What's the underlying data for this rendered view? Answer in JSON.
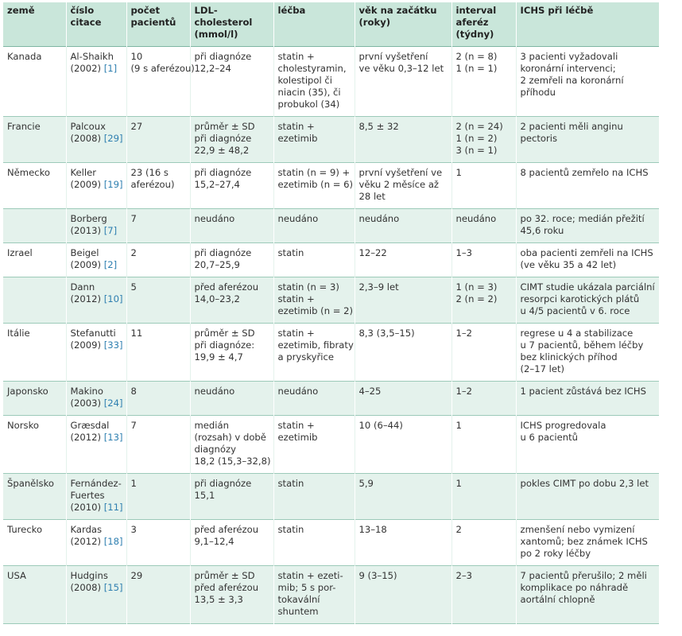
{
  "header": [
    "země",
    "číslo citace",
    "počet pacientů",
    "LDL-cholesterol (mmol/l)",
    "léčba",
    "věk na začátku (roky)",
    "interval aferéz (týdny)",
    "ICHS při léčbě"
  ],
  "rows": [
    {
      "country": "Kanada",
      "author": "Al-Shaikh",
      "year": "(2002)",
      "ref": "[1]",
      "count": [
        "10",
        "(9 s aferézou)"
      ],
      "ldl": [
        "při diagnóze",
        "12,2–24"
      ],
      "therapy": [
        "statin +",
        "cholestyramin,",
        "kolestipol či",
        "niacin (35), či",
        "probukol (34)"
      ],
      "age": [
        "první vyšetření",
        "ve věku 0,3–12 let"
      ],
      "interval": [
        "2 (n = 8)",
        "1 (n = 1)"
      ],
      "ichs": [
        "3 pacienti vyžadovali",
        "koronární intervenci;",
        "2 zemřeli na koronární",
        "příhodu"
      ]
    },
    {
      "country": "Francie",
      "author": "Palcoux",
      "year": "(2008)",
      "ref": "[29]",
      "count": [
        "27"
      ],
      "ldl": [
        "průměr ± SD",
        "při diagnóze",
        "22,9 ± 48,2"
      ],
      "therapy": [
        "statin +",
        "ezetimib"
      ],
      "age": [
        "8,5 ± 32"
      ],
      "interval": [
        "2 (n = 24)",
        "1 (n = 2)",
        "3 (n = 1)"
      ],
      "ichs": [
        "2 pacienti měli anginu",
        "pectoris"
      ]
    },
    {
      "country": "Německo",
      "author": "Keller",
      "year": "(2009)",
      "ref": "[19]",
      "count": [
        "23 (16 s",
        "aferézou)"
      ],
      "ldl": [
        "při diagnóze",
        "15,2–27,4"
      ],
      "therapy": [
        "statin (n = 9) +",
        "ezetimib (n = 6)"
      ],
      "age": [
        "první vyšetření ve",
        "věku 2 měsíce až",
        "28 let"
      ],
      "interval": [
        "1"
      ],
      "ichs": [
        "8 pacientů zemřelo na ICHS"
      ]
    },
    {
      "country": "",
      "author": "Borberg",
      "year": "(2013)",
      "ref": "[7]",
      "count": [
        "7"
      ],
      "ldl": [
        "neudáno"
      ],
      "therapy": [
        "neudáno"
      ],
      "age": [
        "neudáno"
      ],
      "interval": [
        "neudáno"
      ],
      "ichs": [
        "po 32. roce; medián přežití",
        "45,6 roku"
      ]
    },
    {
      "country": "Izrael",
      "author": "Beigel",
      "year": "(2009)",
      "ref": "[2]",
      "count": [
        "2"
      ],
      "ldl": [
        "při diagnóze",
        "20,7–25,9"
      ],
      "therapy": [
        "statin"
      ],
      "age": [
        "12–22"
      ],
      "interval": [
        "1–3"
      ],
      "ichs": [
        "oba pacienti zemřeli na ICHS",
        "(ve věku 35 a 42 let)"
      ]
    },
    {
      "country": "",
      "author": "Dann",
      "year": "(2012)",
      "ref": "[10]",
      "count": [
        "5"
      ],
      "ldl": [
        "před aferézou",
        "14,0–23,2"
      ],
      "therapy": [
        "statin (n = 3)",
        "statin +",
        "ezetimib (n = 2)"
      ],
      "age": [
        "2,3–9 let"
      ],
      "interval": [
        "1 (n = 3)",
        "2 (n = 2)"
      ],
      "ichs": [
        "CIMT studie ukázala parciální",
        "resorpci karotických plátů",
        "u 4/5 pacientů v 6. roce"
      ]
    },
    {
      "country": "Itálie",
      "author": "Stefanutti",
      "year": "(2009)",
      "ref": "[33]",
      "count": [
        "11"
      ],
      "ldl": [
        "průměr ± SD",
        "při diagnóze:",
        "19,9 ± 4,7"
      ],
      "therapy": [
        "statin +",
        "ezetimib, fibraty",
        "a pryskyřice"
      ],
      "age": [
        "8,3 (3,5–15)"
      ],
      "interval": [
        "1–2"
      ],
      "ichs": [
        "regrese u 4 a stabilizace",
        "u 7 pacientů, během léčby",
        "bez klinických příhod",
        "(2–17 let)"
      ]
    },
    {
      "country": "Japonsko",
      "author": "Makino",
      "year": "(2003)",
      "ref": "[24]",
      "count": [
        "8"
      ],
      "ldl": [
        "neudáno"
      ],
      "therapy": [
        "neudáno"
      ],
      "age": [
        "4–25"
      ],
      "interval": [
        "1–2"
      ],
      "ichs": [
        "1 pacient zůstává bez ICHS"
      ]
    },
    {
      "country": "Norsko",
      "author": "Græsdal",
      "year": "(2012)",
      "ref": "[13]",
      "count": [
        "7"
      ],
      "ldl": [
        "medián",
        "(rozsah) v době",
        "diagnózy",
        "18,2 (15,3–32,8)"
      ],
      "therapy": [
        "statin +",
        "ezetimib"
      ],
      "age": [
        "10 (6–44)"
      ],
      "interval": [
        "1"
      ],
      "ichs": [
        "ICHS progredovala",
        "u 6 pacientů"
      ]
    },
    {
      "country": "Španělsko",
      "author": "Fernández-",
      "author2": "Fuertes",
      "year": "(2010)",
      "ref": "[11]",
      "count": [
        "1"
      ],
      "ldl": [
        "při diagnóze",
        "15,1"
      ],
      "therapy": [
        "statin"
      ],
      "age": [
        "5,9"
      ],
      "interval": [
        "1"
      ],
      "ichs": [
        "pokles CIMT po dobu 2,3 let"
      ]
    },
    {
      "country": "Turecko",
      "author": "Kardas",
      "year": "(2012)",
      "ref": "[18]",
      "count": [
        "3"
      ],
      "ldl": [
        "před aferézou",
        "9,1–12,4"
      ],
      "therapy": [
        "statin"
      ],
      "age": [
        "13–18"
      ],
      "interval": [
        "2"
      ],
      "ichs": [
        "zmenšení nebo vymizení",
        "xantomů; bez známek ICHS",
        "po 2 roky léčby"
      ]
    },
    {
      "country": "USA",
      "author": "Hudgins",
      "year": "(2008)",
      "ref": "[15]",
      "count": [
        "29"
      ],
      "ldl": [
        "průměr ± SD",
        "před aferézou",
        "13,5 ± 3,3"
      ],
      "therapy": [
        "statin + ezeti-",
        "mib; 5 s por-",
        "tokavální",
        "shuntem"
      ],
      "age": [
        "9 (3–15)"
      ],
      "interval": [
        "2–3"
      ],
      "ichs": [
        "7 pacientů přerušilo; 2 měli",
        "komplikace po náhradě",
        "aortální chlopně"
      ]
    }
  ]
}
